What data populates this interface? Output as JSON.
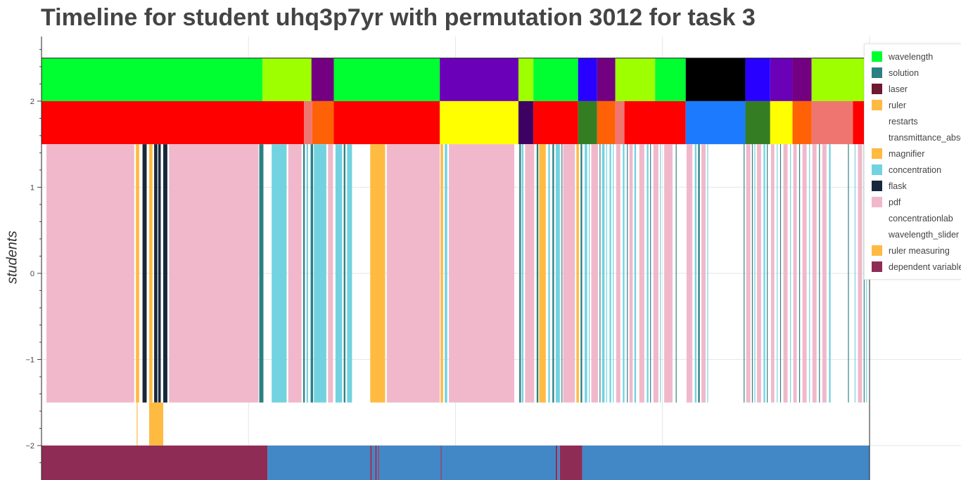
{
  "chart_data": {
    "type": "timeline",
    "title": "Timeline for student uhq3p7yr with permutation 3012 for task 3",
    "xlabel": "",
    "ylabel": "students",
    "ylim": [
      -2.4,
      2.75
    ],
    "xlim": [
      0,
      1000
    ],
    "yticks": [
      {
        "value": 2,
        "label": "2"
      },
      {
        "value": 1,
        "label": "1"
      },
      {
        "value": 0,
        "label": "0"
      },
      {
        "value": -1,
        "label": "−1"
      },
      {
        "value": -2,
        "label": "−2"
      }
    ],
    "grid": true,
    "legend_position": "top-right",
    "legend": [
      {
        "name": "wavelength",
        "color": "#00ff30"
      },
      {
        "name": "solution",
        "color": "#2a8082"
      },
      {
        "name": "laser",
        "color": "#6e1930"
      },
      {
        "name": "ruler",
        "color": "#ffba42"
      },
      {
        "name": "restarts",
        "color": "#ffffff"
      },
      {
        "name": "transmittance_absorbance",
        "color": "#ffffff"
      },
      {
        "name": "magnifier",
        "color": "#ffba42"
      },
      {
        "name": "concentration",
        "color": "#73d2e0"
      },
      {
        "name": "flask",
        "color": "#16283c"
      },
      {
        "name": "pdf",
        "color": "#f0b8ca"
      },
      {
        "name": "concentrationlab",
        "color": "#ffffff"
      },
      {
        "name": "wavelength_slider",
        "color": "#ffffff"
      },
      {
        "name": "ruler measuring",
        "color": "#ffba42"
      },
      {
        "name": "dependent variable",
        "color": "#8f2c55"
      }
    ],
    "rows": [
      {
        "name": "top",
        "y0": 2.0,
        "y1": 2.5,
        "segments": [
          {
            "x0": 0,
            "x1": 267,
            "color": "#00ff30"
          },
          {
            "x0": 267,
            "x1": 326,
            "color": "#9eff00"
          },
          {
            "x0": 326,
            "x1": 353,
            "color": "#720081"
          },
          {
            "x0": 353,
            "x1": 481,
            "color": "#00ff30"
          },
          {
            "x0": 481,
            "x1": 576,
            "color": "#6a00b8"
          },
          {
            "x0": 576,
            "x1": 594,
            "color": "#9eff00"
          },
          {
            "x0": 594,
            "x1": 648,
            "color": "#00ff30"
          },
          {
            "x0": 648,
            "x1": 671,
            "color": "#2800ff"
          },
          {
            "x0": 671,
            "x1": 693,
            "color": "#720081"
          },
          {
            "x0": 693,
            "x1": 741,
            "color": "#9eff00"
          },
          {
            "x0": 741,
            "x1": 778,
            "color": "#00ff30"
          },
          {
            "x0": 778,
            "x1": 850,
            "color": "#000000"
          },
          {
            "x0": 850,
            "x1": 880,
            "color": "#2800ff"
          },
          {
            "x0": 880,
            "x1": 907,
            "color": "#6a00b8"
          },
          {
            "x0": 907,
            "x1": 930,
            "color": "#720081"
          },
          {
            "x0": 930,
            "x1": 1000,
            "color": "#9eff00"
          }
        ]
      },
      {
        "name": "middle",
        "y0": 1.5,
        "y1": 2.0,
        "segments": [
          {
            "x0": 0,
            "x1": 317,
            "color": "#ff0000"
          },
          {
            "x0": 317,
            "x1": 327,
            "color": "#ef7570"
          },
          {
            "x0": 327,
            "x1": 353,
            "color": "#ff6106"
          },
          {
            "x0": 353,
            "x1": 481,
            "color": "#ff0000"
          },
          {
            "x0": 481,
            "x1": 576,
            "color": "#ffff00"
          },
          {
            "x0": 576,
            "x1": 594,
            "color": "#3d0063"
          },
          {
            "x0": 594,
            "x1": 648,
            "color": "#ff0000"
          },
          {
            "x0": 648,
            "x1": 671,
            "color": "#347d23"
          },
          {
            "x0": 671,
            "x1": 693,
            "color": "#ff6106"
          },
          {
            "x0": 693,
            "x1": 704,
            "color": "#ef7570"
          },
          {
            "x0": 704,
            "x1": 778,
            "color": "#ff0000"
          },
          {
            "x0": 778,
            "x1": 850,
            "color": "#1c7aff"
          },
          {
            "x0": 850,
            "x1": 880,
            "color": "#347d23"
          },
          {
            "x0": 880,
            "x1": 907,
            "color": "#ffff00"
          },
          {
            "x0": 907,
            "x1": 930,
            "color": "#ff6106"
          },
          {
            "x0": 930,
            "x1": 980,
            "color": "#ef7570"
          },
          {
            "x0": 980,
            "x1": 1000,
            "color": "#ff0000"
          }
        ]
      },
      {
        "name": "activities",
        "y0": -1.5,
        "y1": 1.5,
        "segments": [
          {
            "x0": 6,
            "x1": 112,
            "color": "#f0b8ca"
          },
          {
            "x0": 114,
            "x1": 118,
            "color": "#ffba42"
          },
          {
            "x0": 122,
            "x1": 127,
            "color": "#16283c"
          },
          {
            "x0": 130,
            "x1": 134,
            "color": "#ffba42"
          },
          {
            "x0": 136,
            "x1": 140,
            "color": "#16283c"
          },
          {
            "x0": 141,
            "x1": 144,
            "color": "#16283c"
          },
          {
            "x0": 147,
            "x1": 152,
            "color": "#16283c"
          },
          {
            "x0": 154,
            "x1": 262,
            "color": "#f0b8ca"
          },
          {
            "x0": 263,
            "x1": 268,
            "color": "#2a8082"
          },
          {
            "x0": 278,
            "x1": 296,
            "color": "#73d2e0"
          },
          {
            "x0": 298,
            "x1": 314,
            "color": "#f0b8ca"
          },
          {
            "x0": 316,
            "x1": 318,
            "color": "#2a8082"
          },
          {
            "x0": 320,
            "x1": 322,
            "color": "#73d2e0"
          },
          {
            "x0": 325,
            "x1": 328,
            "color": "#2a8082"
          },
          {
            "x0": 329,
            "x1": 344,
            "color": "#73d2e0"
          },
          {
            "x0": 346,
            "x1": 352,
            "color": "#f0b8ca"
          },
          {
            "x0": 355,
            "x1": 363,
            "color": "#73d2e0"
          },
          {
            "x0": 365,
            "x1": 367,
            "color": "#2a8082"
          },
          {
            "x0": 369,
            "x1": 375,
            "color": "#73d2e0"
          },
          {
            "x0": 397,
            "x1": 415,
            "color": "#ffba42"
          },
          {
            "x0": 417,
            "x1": 481,
            "color": "#f0b8ca"
          },
          {
            "x0": 482,
            "x1": 485,
            "color": "#ffba42"
          },
          {
            "x0": 487,
            "x1": 490,
            "color": "#73d2e0"
          },
          {
            "x0": 492,
            "x1": 571,
            "color": "#f0b8ca"
          },
          {
            "x0": 577,
            "x1": 579,
            "color": "#2a8082"
          },
          {
            "x0": 580,
            "x1": 582,
            "color": "#73d2e0"
          },
          {
            "x0": 584,
            "x1": 595,
            "color": "#f0b8ca"
          },
          {
            "x0": 598,
            "x1": 600,
            "color": "#2a8082"
          },
          {
            "x0": 601,
            "x1": 609,
            "color": "#ffba42"
          },
          {
            "x0": 612,
            "x1": 614,
            "color": "#73d2e0"
          },
          {
            "x0": 617,
            "x1": 619,
            "color": "#2a8082"
          },
          {
            "x0": 621,
            "x1": 626,
            "color": "#73d2e0"
          },
          {
            "x0": 628,
            "x1": 629,
            "color": "#2a8082"
          },
          {
            "x0": 630,
            "x1": 644,
            "color": "#f0b8ca"
          },
          {
            "x0": 646,
            "x1": 649,
            "color": "#ffba42"
          },
          {
            "x0": 651,
            "x1": 653,
            "color": "#2a8082"
          },
          {
            "x0": 656,
            "x1": 659,
            "color": "#73d2e0"
          },
          {
            "x0": 661,
            "x1": 662,
            "color": "#73d2e0"
          },
          {
            "x0": 664,
            "x1": 672,
            "color": "#f0b8ca"
          },
          {
            "x0": 674,
            "x1": 675,
            "color": "#2a8082"
          },
          {
            "x0": 677,
            "x1": 680,
            "color": "#73d2e0"
          },
          {
            "x0": 682,
            "x1": 683,
            "color": "#73d2e0"
          },
          {
            "x0": 686,
            "x1": 688,
            "color": "#73d2e0"
          },
          {
            "x0": 690,
            "x1": 691,
            "color": "#73d2e0"
          },
          {
            "x0": 694,
            "x1": 699,
            "color": "#f0b8ca"
          },
          {
            "x0": 702,
            "x1": 704,
            "color": "#73d2e0"
          },
          {
            "x0": 707,
            "x1": 708,
            "color": "#2a8082"
          },
          {
            "x0": 710,
            "x1": 714,
            "color": "#f0b8ca"
          },
          {
            "x0": 716,
            "x1": 718,
            "color": "#73d2e0"
          },
          {
            "x0": 722,
            "x1": 728,
            "color": "#f0b8ca"
          },
          {
            "x0": 731,
            "x1": 733,
            "color": "#73d2e0"
          },
          {
            "x0": 735,
            "x1": 736,
            "color": "#2a8082"
          },
          {
            "x0": 739,
            "x1": 745,
            "color": "#f0b8ca"
          },
          {
            "x0": 747,
            "x1": 748,
            "color": "#73d2e0"
          },
          {
            "x0": 752,
            "x1": 762,
            "color": "#f0b8ca"
          },
          {
            "x0": 766,
            "x1": 767,
            "color": "#2a8082"
          },
          {
            "x0": 779,
            "x1": 786,
            "color": "#f0b8ca"
          },
          {
            "x0": 789,
            "x1": 791,
            "color": "#73d2e0"
          },
          {
            "x0": 793,
            "x1": 795,
            "color": "#2a8082"
          },
          {
            "x0": 797,
            "x1": 802,
            "color": "#f0b8ca"
          },
          {
            "x0": 804,
            "x1": 805,
            "color": "#73d2e0"
          },
          {
            "x0": 848,
            "x1": 849,
            "color": "#2a8082"
          },
          {
            "x0": 851,
            "x1": 856,
            "color": "#f0b8ca"
          },
          {
            "x0": 858,
            "x1": 859,
            "color": "#2a8082"
          },
          {
            "x0": 861,
            "x1": 862,
            "color": "#73d2e0"
          },
          {
            "x0": 864,
            "x1": 869,
            "color": "#f0b8ca"
          },
          {
            "x0": 872,
            "x1": 874,
            "color": "#73d2e0"
          },
          {
            "x0": 876,
            "x1": 877,
            "color": "#2a8082"
          },
          {
            "x0": 881,
            "x1": 885,
            "color": "#f0b8ca"
          },
          {
            "x0": 888,
            "x1": 889,
            "color": "#73d2e0"
          },
          {
            "x0": 892,
            "x1": 893,
            "color": "#2a8082"
          },
          {
            "x0": 896,
            "x1": 901,
            "color": "#f0b8ca"
          },
          {
            "x0": 904,
            "x1": 905,
            "color": "#73d2e0"
          },
          {
            "x0": 908,
            "x1": 912,
            "color": "#f0b8ca"
          },
          {
            "x0": 915,
            "x1": 916,
            "color": "#2a8082"
          },
          {
            "x0": 919,
            "x1": 924,
            "color": "#f0b8ca"
          },
          {
            "x0": 927,
            "x1": 928,
            "color": "#73d2e0"
          },
          {
            "x0": 931,
            "x1": 936,
            "color": "#f0b8ca"
          },
          {
            "x0": 939,
            "x1": 940,
            "color": "#2a8082"
          },
          {
            "x0": 943,
            "x1": 948,
            "color": "#f0b8ca"
          },
          {
            "x0": 951,
            "x1": 953,
            "color": "#73d2e0"
          },
          {
            "x0": 974,
            "x1": 975,
            "color": "#2a8082"
          },
          {
            "x0": 982,
            "x1": 983,
            "color": "#73d2e0"
          },
          {
            "x0": 986,
            "x1": 991,
            "color": "#f0b8ca"
          },
          {
            "x0": 993,
            "x1": 994,
            "color": "#2a8082"
          },
          {
            "x0": 996,
            "x1": 997,
            "color": "#73d2e0"
          }
        ]
      },
      {
        "name": "below-activities",
        "y0": -2.0,
        "y1": -1.5,
        "segments": [
          {
            "x0": 115,
            "x1": 116,
            "color": "#ffba42"
          },
          {
            "x0": 130,
            "x1": 147,
            "color": "#ffba42"
          }
        ]
      },
      {
        "name": "bottom",
        "y0": -2.4,
        "y1": -2.0,
        "segments": [
          {
            "x0": 0,
            "x1": 273,
            "color": "#8f2c55"
          },
          {
            "x0": 273,
            "x1": 397,
            "color": "#4287c6"
          },
          {
            "x0": 397,
            "x1": 399,
            "color": "#8f2c55"
          },
          {
            "x0": 399,
            "x1": 403,
            "color": "#4287c6"
          },
          {
            "x0": 403,
            "x1": 405,
            "color": "#8f2c55"
          },
          {
            "x0": 405,
            "x1": 407,
            "color": "#4287c6"
          },
          {
            "x0": 407,
            "x1": 408,
            "color": "#8f2c55"
          },
          {
            "x0": 408,
            "x1": 482,
            "color": "#4287c6"
          },
          {
            "x0": 482,
            "x1": 483,
            "color": "#8f2c55"
          },
          {
            "x0": 483,
            "x1": 621,
            "color": "#4287c6"
          },
          {
            "x0": 621,
            "x1": 623,
            "color": "#8f2c55"
          },
          {
            "x0": 623,
            "x1": 626,
            "color": "#4287c6"
          },
          {
            "x0": 626,
            "x1": 653,
            "color": "#8f2c55"
          },
          {
            "x0": 653,
            "x1": 1000,
            "color": "#4287c6"
          }
        ]
      }
    ],
    "axis_extent_line": {
      "x": 1000
    }
  }
}
